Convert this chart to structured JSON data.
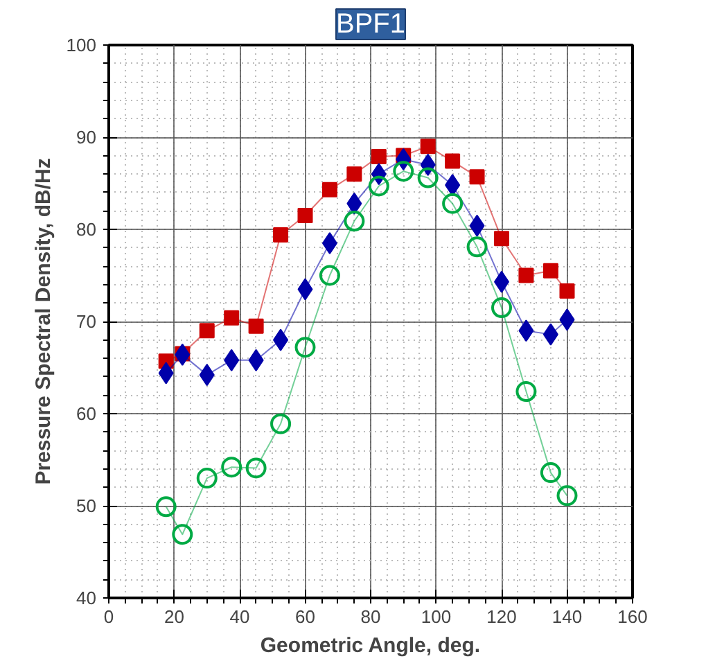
{
  "chart_data": {
    "type": "line",
    "title": "BPF1",
    "xlabel": "Geometric Angle, deg.",
    "ylabel": "Pressure Spectral Density, dB/Hz",
    "x": [
      17.5,
      22.5,
      30,
      37.5,
      45,
      52.5,
      60,
      67.5,
      75,
      82.5,
      90,
      97.5,
      105,
      112.5,
      120,
      127.5,
      135,
      140
    ],
    "series": [
      {
        "color": "#cc0000",
        "marker": "square",
        "values": [
          65.7,
          66.5,
          69,
          70.4,
          69.5,
          79.4,
          81.5,
          84.3,
          86,
          87.9,
          88,
          89,
          87.4,
          85.7,
          79,
          75,
          75.5,
          73.3
        ]
      },
      {
        "color": "#0000aa",
        "marker": "diamond",
        "values": [
          64.4,
          66.4,
          64.2,
          65.8,
          65.8,
          68,
          73.5,
          78.5,
          82.8,
          86,
          87.6,
          87,
          84.8,
          80.4,
          74.3,
          69,
          68.6,
          70.2
        ]
      },
      {
        "color": "#00aa44",
        "marker": "circle",
        "values": [
          49.9,
          46.9,
          53,
          54.2,
          54.1,
          58.9,
          67.2,
          75,
          80.9,
          84.7,
          86.3,
          85.6,
          82.8,
          78.1,
          71.5,
          62.4,
          53.6,
          51.1
        ]
      }
    ],
    "xlim": [
      0,
      160
    ],
    "ylim": [
      40,
      100
    ],
    "xticks": [
      0,
      20,
      40,
      60,
      80,
      100,
      120,
      140,
      160
    ],
    "yticks": [
      40,
      50,
      60,
      70,
      80,
      90,
      100
    ],
    "grid": true
  }
}
